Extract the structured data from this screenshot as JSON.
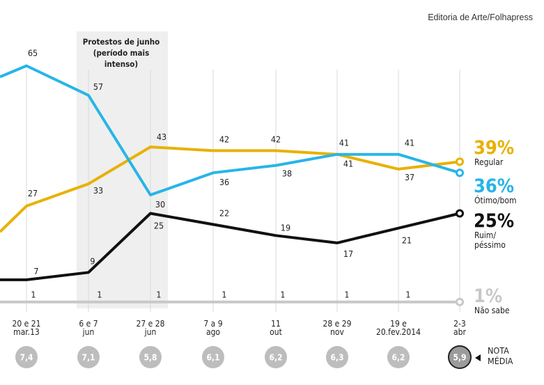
{
  "source": "Editoria de Arte/Folhapress",
  "annotation": [
    "Protestos de junho",
    "(período mais",
    "intenso)"
  ],
  "nota_label": [
    "NOTA",
    "MÉDIA"
  ],
  "chart_data": {
    "type": "line",
    "x_labels": [
      [
        "20 e 21",
        "mar.13"
      ],
      [
        "6 e 7",
        "jun"
      ],
      [
        "27 e 28",
        "jun"
      ],
      [
        "7 a 9",
        "ago"
      ],
      [
        "11",
        "out"
      ],
      [
        "28 e 29",
        "nov"
      ],
      [
        "19 e",
        "20.fev.2014"
      ],
      [
        "2-3",
        "abr"
      ]
    ],
    "series": [
      {
        "name": "Regular",
        "color": "#e8b100",
        "leading_value": 20,
        "values": [
          27,
          33,
          43,
          42,
          42,
          41,
          37,
          39
        ],
        "end_label": "39%"
      },
      {
        "name": "Ótimo/bom",
        "color": "#27b5e8",
        "leading_value": 62,
        "values": [
          65,
          57,
          30,
          36,
          38,
          41,
          41,
          36
        ],
        "end_label": "36%"
      },
      {
        "name": "Ruim/péssimo",
        "color": "#111111",
        "leading_value": 7,
        "values": [
          7,
          9,
          25,
          22,
          19,
          17,
          21,
          25
        ],
        "end_label": "25%"
      },
      {
        "name": "Não sabe",
        "color": "#c8c8c8",
        "leading_value": 1,
        "values": [
          1,
          1,
          1,
          1,
          1,
          1,
          1,
          1
        ],
        "end_label": "1%"
      }
    ],
    "end_labels": [
      [
        "Regular"
      ],
      [
        "Ótimo/bom"
      ],
      [
        "Ruim/",
        "péssimo"
      ],
      [
        "Não sabe"
      ]
    ],
    "nota_media": [
      "7,4",
      "7,1",
      "5,8",
      "6,1",
      "6,2",
      "6,3",
      "6,2",
      "5,9"
    ],
    "highlight_period": "Protestos de junho (período mais intenso)"
  }
}
